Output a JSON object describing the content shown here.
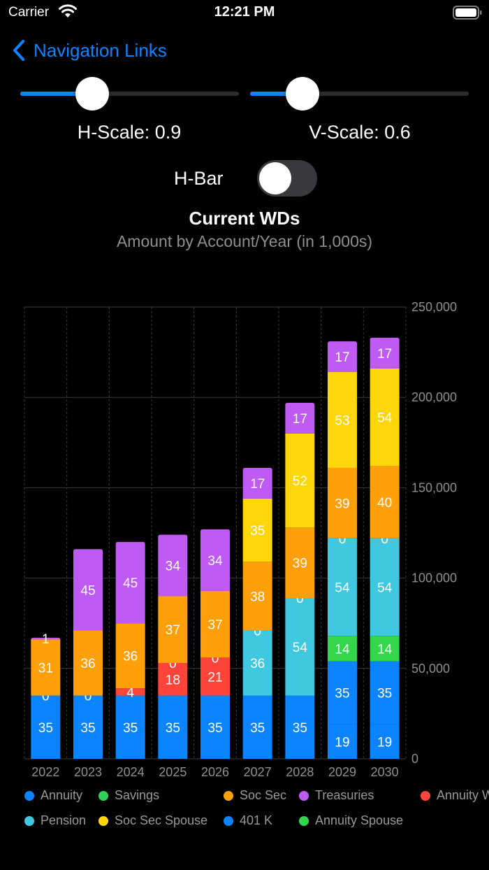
{
  "status": {
    "carrier": "Carrier",
    "time": "12:21 PM"
  },
  "nav": {
    "back_label": "Navigation Links"
  },
  "controls": {
    "h_scale": {
      "label": "H-Scale: 0.9",
      "value": 0.9,
      "fraction": 0.33
    },
    "v_scale": {
      "label": "V-Scale: 0.6",
      "value": 0.6,
      "fraction": 0.24
    },
    "h_bar": {
      "label": "H-Bar",
      "on": false
    }
  },
  "colors": {
    "accent": "#0a84ff",
    "Annuity": "#0a84ff",
    "Savings": "#30d158",
    "Soc Sec": "#ff9f0a",
    "Treasuries": "#bf5af2",
    "Annuity W": "#ff453a",
    "Pension": "#40c8e0",
    "Soc Sec Spouse": "#ffd60a",
    "401 K": "#0a84ff",
    "Annuity Spouse": "#32d74b"
  },
  "chart_data": {
    "type": "bar",
    "stacked": true,
    "title": "Current WDs",
    "subtitle": "Amount by Account/Year (in 1,000s)",
    "categories": [
      "2022",
      "2023",
      "2024",
      "2025",
      "2026",
      "2027",
      "2028",
      "2029",
      "2030"
    ],
    "ylim": [
      0,
      250000
    ],
    "yticks": [
      "0",
      "50,000",
      "100,000",
      "150,000",
      "200,000",
      "250,000"
    ],
    "ytick_values": [
      0,
      50000,
      100000,
      150000,
      200000,
      250000
    ],
    "grid": true,
    "legend_position": "bottom",
    "legend": [
      "Annuity",
      "Savings",
      "Soc Sec",
      "Treasuries",
      "Annuity W",
      "Pension",
      "Soc Sec Spouse",
      "401 K",
      "Annuity Spouse"
    ],
    "bars": [
      {
        "year": "2022",
        "segments": [
          {
            "series": "Annuity",
            "value": 35000,
            "label": "35"
          },
          {
            "series": "Annuity W",
            "value": 0,
            "label": "0"
          },
          {
            "series": "Soc Sec",
            "value": 31000,
            "label": "31"
          },
          {
            "series": "Treasuries",
            "value": 1000,
            "label": "1"
          }
        ]
      },
      {
        "year": "2023",
        "segments": [
          {
            "series": "Annuity",
            "value": 35000,
            "label": "35"
          },
          {
            "series": "Annuity W",
            "value": 0,
            "label": "0"
          },
          {
            "series": "Soc Sec",
            "value": 36000,
            "label": "36"
          },
          {
            "series": "Treasuries",
            "value": 45000,
            "label": "45"
          }
        ]
      },
      {
        "year": "2024",
        "segments": [
          {
            "series": "Annuity",
            "value": 35000,
            "label": "35"
          },
          {
            "series": "Annuity W",
            "value": 4000,
            "label": "4"
          },
          {
            "series": "Soc Sec",
            "value": 36000,
            "label": "36"
          },
          {
            "series": "Treasuries",
            "value": 45000,
            "label": "45"
          }
        ]
      },
      {
        "year": "2025",
        "segments": [
          {
            "series": "Annuity",
            "value": 35000,
            "label": "35"
          },
          {
            "series": "Annuity W",
            "value": 18000,
            "label": "18"
          },
          {
            "series": "Pension",
            "value": 0,
            "label": "0"
          },
          {
            "series": "Soc Sec",
            "value": 37000,
            "label": "37"
          },
          {
            "series": "Treasuries",
            "value": 34000,
            "label": "34"
          }
        ]
      },
      {
        "year": "2026",
        "segments": [
          {
            "series": "Annuity",
            "value": 35000,
            "label": "35"
          },
          {
            "series": "Annuity W",
            "value": 21000,
            "label": "21"
          },
          {
            "series": "Pension",
            "value": 0,
            "label": "0"
          },
          {
            "series": "Soc Sec",
            "value": 37000,
            "label": "37"
          },
          {
            "series": "Treasuries",
            "value": 34000,
            "label": "34"
          }
        ]
      },
      {
        "year": "2027",
        "segments": [
          {
            "series": "Annuity",
            "value": 35000,
            "label": "35"
          },
          {
            "series": "Pension",
            "value": 36000,
            "label": "36"
          },
          {
            "series": "Savings",
            "value": 0,
            "label": "0"
          },
          {
            "series": "Soc Sec",
            "value": 38000,
            "label": "38"
          },
          {
            "series": "Soc Sec Spouse",
            "value": 35000,
            "label": "35"
          },
          {
            "series": "Treasuries",
            "value": 17000,
            "label": "17"
          }
        ]
      },
      {
        "year": "2028",
        "segments": [
          {
            "series": "Annuity",
            "value": 35000,
            "label": "35"
          },
          {
            "series": "Pension",
            "value": 54000,
            "label": "54"
          },
          {
            "series": "Savings",
            "value": 0,
            "label": "0"
          },
          {
            "series": "Soc Sec",
            "value": 39000,
            "label": "39"
          },
          {
            "series": "Soc Sec Spouse",
            "value": 52000,
            "label": "52"
          },
          {
            "series": "Treasuries",
            "value": 17000,
            "label": "17"
          }
        ]
      },
      {
        "year": "2029",
        "segments": [
          {
            "series": "401 K",
            "value": 19000,
            "label": "19"
          },
          {
            "series": "Annuity",
            "value": 35000,
            "label": "35"
          },
          {
            "series": "Annuity Spouse",
            "value": 14000,
            "label": "14"
          },
          {
            "series": "Pension",
            "value": 54000,
            "label": "54"
          },
          {
            "series": "Savings",
            "value": 0,
            "label": "0"
          },
          {
            "series": "Soc Sec",
            "value": 39000,
            "label": "39"
          },
          {
            "series": "Soc Sec Spouse",
            "value": 53000,
            "label": "53"
          },
          {
            "series": "Treasuries",
            "value": 17000,
            "label": "17"
          }
        ]
      },
      {
        "year": "2030",
        "segments": [
          {
            "series": "401 K",
            "value": 19000,
            "label": "19"
          },
          {
            "series": "Annuity",
            "value": 35000,
            "label": "35"
          },
          {
            "series": "Annuity Spouse",
            "value": 14000,
            "label": "14"
          },
          {
            "series": "Pension",
            "value": 54000,
            "label": "54"
          },
          {
            "series": "Savings",
            "value": 0,
            "label": "0"
          },
          {
            "series": "Soc Sec",
            "value": 40000,
            "label": "40"
          },
          {
            "series": "Soc Sec Spouse",
            "value": 54000,
            "label": "54"
          },
          {
            "series": "Treasuries",
            "value": 17000,
            "label": "17"
          }
        ]
      }
    ]
  }
}
